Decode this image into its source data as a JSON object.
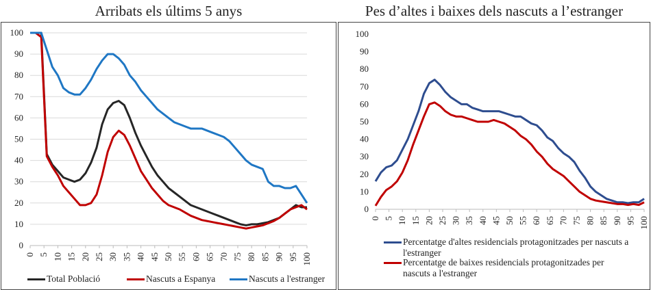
{
  "chart_data": [
    {
      "type": "line",
      "title": "Arribats els últims 5 anys",
      "x": [
        0,
        2,
        4,
        6,
        8,
        10,
        12,
        14,
        16,
        18,
        20,
        22,
        24,
        26,
        28,
        30,
        32,
        34,
        36,
        38,
        40,
        42,
        44,
        46,
        48,
        50,
        52,
        54,
        56,
        58,
        60,
        62,
        64,
        66,
        68,
        70,
        72,
        74,
        76,
        78,
        80,
        82,
        84,
        86,
        88,
        90,
        92,
        94,
        96,
        98,
        100
      ],
      "xlim": [
        0,
        100
      ],
      "xticks": [
        0,
        5,
        10,
        15,
        20,
        25,
        30,
        35,
        40,
        45,
        50,
        55,
        60,
        65,
        70,
        75,
        80,
        85,
        90,
        95,
        100
      ],
      "ylim": [
        0,
        100
      ],
      "yticks": [
        0,
        10,
        20,
        30,
        40,
        50,
        60,
        70,
        80,
        90,
        100
      ],
      "grid": true,
      "legend": "bottom",
      "series": [
        {
          "name": "Total Població",
          "color": "#262626",
          "values": [
            100,
            100,
            100,
            43,
            38,
            35,
            32,
            31,
            30,
            31,
            34,
            39,
            46,
            57,
            64,
            67,
            68,
            66,
            60,
            53,
            47,
            42,
            37,
            33,
            30,
            27,
            25,
            23,
            21,
            19,
            18,
            17,
            16,
            15,
            14,
            13,
            12,
            11,
            10,
            9.5,
            10,
            10,
            10.5,
            11,
            12,
            13,
            15,
            17,
            19,
            18,
            18
          ]
        },
        {
          "name": "Nascuts a Espanya",
          "color": "#c00000",
          "values": [
            100,
            100,
            98,
            42,
            37,
            33,
            28,
            25,
            22,
            19,
            19,
            20,
            24,
            33,
            44,
            51,
            54,
            52,
            47,
            41,
            35,
            31,
            27,
            24,
            21,
            19,
            18,
            17,
            15.5,
            14,
            13,
            12,
            11.5,
            11,
            10.5,
            10,
            9.5,
            9,
            8.5,
            8,
            8.5,
            9,
            9.5,
            10.5,
            11.5,
            13,
            15,
            17,
            18,
            19,
            17
          ]
        },
        {
          "name": "Nascuts a l'estranger",
          "color": "#1f77c4",
          "values": [
            100,
            100,
            100,
            92,
            84,
            80,
            74,
            72,
            71,
            71,
            74,
            78,
            83,
            87,
            90,
            90,
            88,
            85,
            80,
            77,
            73,
            70,
            67,
            64,
            62,
            60,
            58,
            57,
            56,
            55,
            55,
            55,
            54,
            53,
            52,
            51,
            49,
            46,
            43,
            40,
            38,
            37,
            36,
            30,
            28,
            28,
            27,
            27,
            28,
            24,
            20
          ]
        }
      ]
    },
    {
      "type": "line",
      "title": "Pes d’altes i baixes dels nascuts a l’estranger",
      "x": [
        0,
        2,
        4,
        6,
        8,
        10,
        12,
        14,
        16,
        18,
        20,
        22,
        24,
        26,
        28,
        30,
        32,
        34,
        36,
        38,
        40,
        42,
        44,
        46,
        48,
        50,
        52,
        54,
        56,
        58,
        60,
        62,
        64,
        66,
        68,
        70,
        72,
        74,
        76,
        78,
        80,
        82,
        84,
        86,
        88,
        90,
        92,
        94,
        96,
        98,
        100
      ],
      "xlim": [
        0,
        100
      ],
      "xticks": [
        0,
        5,
        10,
        15,
        20,
        25,
        30,
        35,
        40,
        45,
        50,
        55,
        60,
        65,
        70,
        75,
        80,
        85,
        90,
        95,
        100
      ],
      "ylim": [
        0,
        100
      ],
      "yticks": [
        0,
        10,
        20,
        30,
        40,
        50,
        60,
        70,
        80,
        90,
        100
      ],
      "grid": false,
      "legend": "bottom",
      "series": [
        {
          "name": "Percentatge d'altes residencials protagonitzades per nascuts a l'estranger",
          "color": "#2e4d8f",
          "values": [
            16,
            21,
            24,
            25,
            28,
            34,
            40,
            48,
            56,
            66,
            72,
            74,
            71,
            67,
            64,
            62,
            60,
            60,
            58,
            57,
            56,
            56,
            56,
            56,
            55,
            54,
            53,
            53,
            51,
            49,
            48,
            45,
            41,
            39,
            35,
            32,
            30,
            27,
            22,
            18,
            13,
            10,
            8,
            6,
            5,
            4,
            4,
            3.5,
            4,
            4,
            6
          ]
        },
        {
          "name": "Percentatge de baixes residencials protagonitzades per nascuts a l'estranger",
          "color": "#c00000",
          "values": [
            2,
            7,
            11,
            13,
            16,
            21,
            28,
            37,
            45,
            53,
            60,
            61,
            59,
            56,
            54,
            53,
            53,
            52,
            51,
            50,
            50,
            50,
            51,
            50,
            49,
            47,
            45,
            42,
            40,
            37,
            33,
            30,
            26,
            23,
            21,
            19,
            16,
            13,
            10,
            8,
            6,
            5,
            4.5,
            4,
            3.5,
            3,
            3,
            2.5,
            3,
            2.5,
            4
          ]
        }
      ]
    }
  ]
}
